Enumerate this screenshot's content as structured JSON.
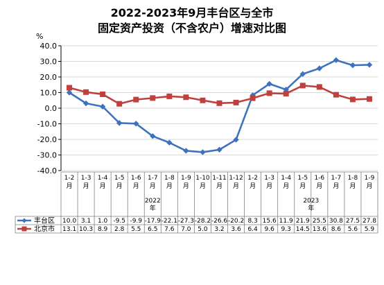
{
  "title_line1": "2022-2023年9月丰台区与全市",
  "title_line2": "固定资产投资（不含农户）增速对比图",
  "unit": "%",
  "year_groups": [
    {
      "label": "2022",
      "suffix": "年"
    },
    {
      "label": "2023",
      "suffix": "年"
    }
  ],
  "colors": {
    "fengtai": "#3f72bd",
    "beijing": "#c0403d",
    "axis": "#000000",
    "grid": "#d9d9d9"
  },
  "chart_data": {
    "type": "line",
    "title": "2022-2023年9月丰台区与全市 固定资产投资（不含农户）增速对比图",
    "ylabel": "%",
    "ylim": [
      -40,
      40
    ],
    "ytick_step": 10,
    "yticks": [
      "40.0",
      "30.0",
      "20.0",
      "10.0",
      "0.0",
      "-10.0",
      "-20.0",
      "-30.0",
      "-40.0"
    ],
    "categories": [
      [
        "1-2",
        "月"
      ],
      [
        "1-3",
        "月"
      ],
      [
        "1-4",
        "月"
      ],
      [
        "1-5",
        "月"
      ],
      [
        "1-6",
        "月"
      ],
      [
        "1-7",
        "月"
      ],
      [
        "1-8",
        "月"
      ],
      [
        "1-9",
        "月"
      ],
      [
        "1-10",
        "月"
      ],
      [
        "1-11",
        "月"
      ],
      [
        "1-12",
        "月"
      ],
      [
        "1-2",
        "月"
      ],
      [
        "1-3",
        "月"
      ],
      [
        "1-4",
        "月"
      ],
      [
        "1-5",
        "月"
      ],
      [
        "1-6",
        "月"
      ],
      [
        "1-7",
        "月"
      ],
      [
        "1-8",
        "月"
      ],
      [
        "1-9",
        "月"
      ]
    ],
    "series": [
      {
        "name": "丰台区",
        "color": "#3f72bd",
        "marker": "diamond",
        "values": [
          10.0,
          3.1,
          1.0,
          -9.5,
          -9.9,
          -17.9,
          -22.1,
          -27.3,
          -28.2,
          -26.6,
          -20.2,
          8.3,
          15.6,
          11.9,
          21.9,
          25.5,
          30.8,
          27.5,
          27.8
        ],
        "labels": [
          "10.0",
          "3.1",
          "1.0",
          "-9.5",
          "-9.9",
          "-17.9",
          "-22.1",
          "-27.3",
          "-28.2",
          "-26.6",
          "-20.2",
          "8.3",
          "15.6",
          "11.9",
          "21.9",
          "25.5",
          "30.8",
          "27.5",
          "27.8"
        ]
      },
      {
        "name": "北京市",
        "color": "#c0403d",
        "marker": "square",
        "values": [
          13.1,
          10.3,
          8.9,
          2.8,
          5.5,
          6.5,
          7.6,
          7.0,
          5.0,
          3.2,
          3.6,
          6.4,
          9.6,
          9.3,
          14.5,
          13.6,
          8.6,
          5.6,
          5.9
        ],
        "labels": [
          "13.1",
          "10.3",
          "8.9",
          "2.8",
          "5.5",
          "6.5",
          "7.6",
          "7.0",
          "5.0",
          "3.2",
          "3.6",
          "6.4",
          "9.6",
          "9.3",
          "14.5",
          "13.6",
          "8.6",
          "5.6",
          "5.9"
        ]
      }
    ],
    "grid": true,
    "legend": "data-table"
  }
}
